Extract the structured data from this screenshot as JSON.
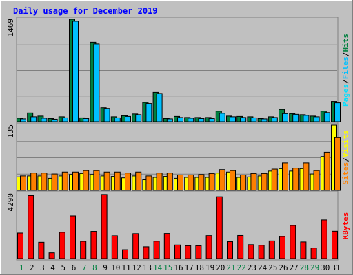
{
  "chart_data": {
    "type": "bar",
    "title": "Daily usage for December 2019",
    "colors": {
      "page_bg": "#c0c0c0",
      "frame": "#808080",
      "gridline": "#808080",
      "title": "#0000ff",
      "hits": "#008040",
      "files": "#00c0ff",
      "pages": "#00e0ff",
      "visits": "#ffff00",
      "sites": "#ff8000",
      "kbytes": "#ff0000",
      "weekend_day": "#008040",
      "weekday": "#000000",
      "sep": "#000000"
    },
    "days": [
      "1",
      "2",
      "3",
      "4",
      "5",
      "6",
      "7",
      "8",
      "9",
      "10",
      "11",
      "12",
      "13",
      "14",
      "15",
      "16",
      "17",
      "18",
      "19",
      "20",
      "21",
      "22",
      "23",
      "24",
      "25",
      "26",
      "27",
      "28",
      "29",
      "30",
      "31"
    ],
    "weekend_days": [
      "1",
      "7",
      "8",
      "14",
      "15",
      "21",
      "22",
      "28",
      "29"
    ],
    "panels": [
      {
        "id": "top",
        "ymax_label": "1469",
        "ymax": 1469,
        "grid": true,
        "legend": [
          {
            "text": "Pages",
            "color_key": "pages"
          },
          {
            "text": "/",
            "color_key": "sep"
          },
          {
            "text": "Files",
            "color_key": "files"
          },
          {
            "text": "/",
            "color_key": "sep"
          },
          {
            "text": "Hits",
            "color_key": "hits"
          }
        ],
        "series": [
          {
            "name": "Hits",
            "color_key": "hits",
            "values": [
              50,
              125,
              80,
              45,
              70,
              1469,
              55,
              1140,
              200,
              70,
              85,
              110,
              275,
              420,
              45,
              75,
              60,
              60,
              60,
              150,
              80,
              75,
              70,
              45,
              70,
              175,
              115,
              100,
              80,
              150,
              290
            ]
          },
          {
            "name": "Files",
            "color_key": "files",
            "values": [
              40,
              70,
              50,
              35,
              55,
              1440,
              45,
              1115,
              190,
              55,
              75,
              100,
              260,
              405,
              40,
              60,
              50,
              45,
              45,
              120,
              70,
              60,
              55,
              40,
              60,
              115,
              105,
              90,
              70,
              130,
              270
            ]
          }
        ]
      },
      {
        "id": "mid",
        "ymax_label": "135",
        "ymax": 135,
        "grid": true,
        "legend": [
          {
            "text": "Sites",
            "color_key": "sites"
          },
          {
            "text": "/",
            "color_key": "sep"
          },
          {
            "text": "Visits",
            "color_key": "visits"
          }
        ],
        "series": [
          {
            "name": "Visits",
            "color_key": "visits",
            "values": [
              28,
              30,
              30,
              25,
              30,
              33,
              35,
              33,
              30,
              29,
              26,
              30,
              22,
              27,
              29,
              25,
              27,
              27,
              27,
              36,
              38,
              27,
              28,
              30,
              40,
              45,
              40,
              45,
              34,
              70,
              135
            ]
          },
          {
            "name": "Sites",
            "color_key": "sites",
            "values": [
              30,
              36,
              36,
              34,
              38,
              38,
              41,
              41,
              38,
              38,
              36,
              38,
              30,
              36,
              36,
              32,
              32,
              33,
              35,
              43,
              41,
              32,
              35,
              35,
              44,
              57,
              46,
              57,
              41,
              79,
              109
            ]
          }
        ]
      },
      {
        "id": "bot",
        "ymax_label": "4290",
        "ymax": 4290,
        "grid": false,
        "legend": [
          {
            "text": "KBytes",
            "color_key": "kbytes"
          }
        ],
        "series": [
          {
            "name": "KBytes",
            "color_key": "kbytes",
            "values": [
              1690,
              4180,
              1080,
              380,
              1740,
              2830,
              1140,
              1800,
              4250,
              1510,
              590,
              1650,
              780,
              1150,
              1660,
              900,
              850,
              850,
              1520,
              4100,
              1120,
              1530,
              920,
              880,
              1170,
              1460,
              2190,
              1100,
              700,
              2560,
              1810
            ]
          }
        ]
      }
    ]
  }
}
